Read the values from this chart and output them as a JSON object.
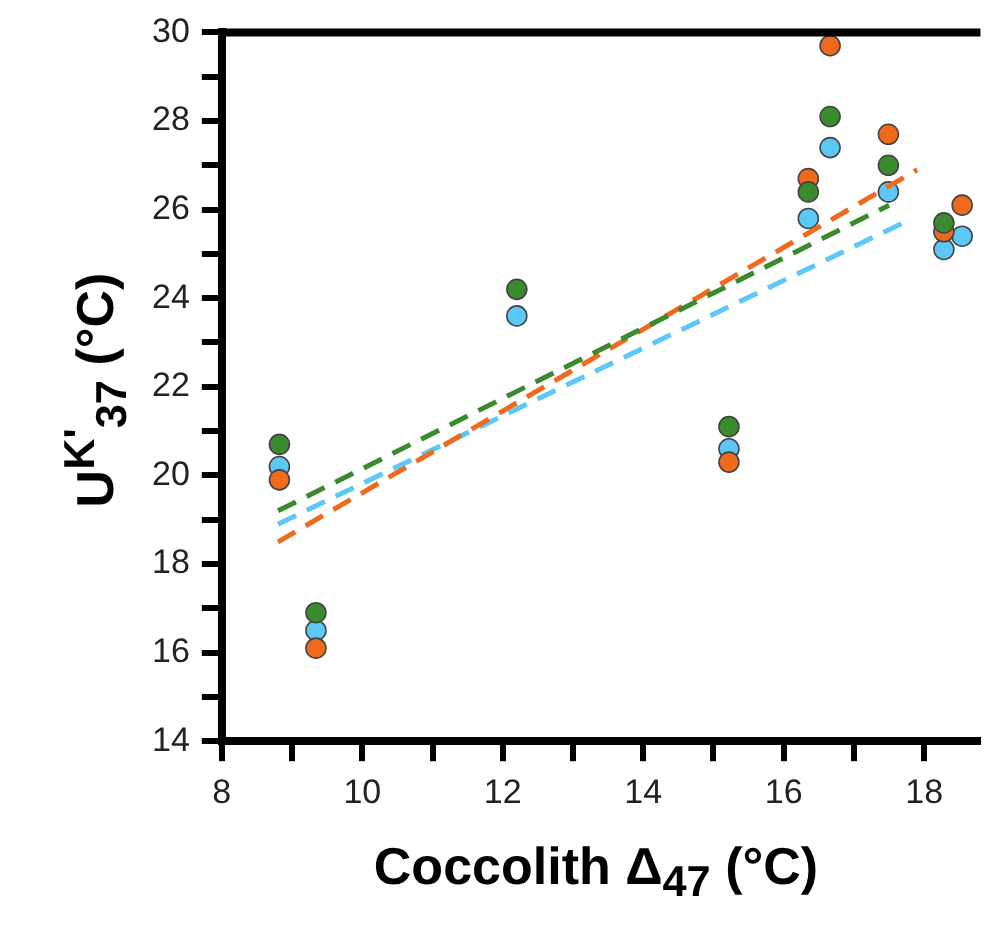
{
  "chart_data": {
    "type": "scatter",
    "xlabel": "Coccolith Δ$_{47}$  (°C)",
    "ylabel": "U$^{K'}$$_{37}$ (°C)",
    "xlim": [
      8,
      18.8
    ],
    "xticks": [
      8,
      {
        "value": 9,
        "label": null
      },
      10,
      {
        "value": 11,
        "label": null
      },
      12,
      {
        "value": 13,
        "label": null
      },
      14,
      {
        "value": 15,
        "label": null
      },
      16,
      {
        "value": 17,
        "label": null
      },
      18
    ],
    "ylim": [
      14,
      30
    ],
    "yticks": [
      14,
      {
        "value": 15,
        "label": null
      },
      16,
      {
        "value": 17,
        "label": null
      },
      18,
      {
        "value": 19,
        "label": null
      },
      20,
      {
        "value": 21,
        "label": null
      },
      22,
      {
        "value": 23,
        "label": null
      },
      24,
      {
        "value": 25,
        "label": null
      },
      26,
      {
        "value": 27,
        "label": null
      },
      28,
      {
        "value": 29,
        "label": null
      },
      30
    ],
    "grid": false,
    "legend": false,
    "marker": "circle",
    "series": [
      {
        "color": "#3a8a2e",
        "x": [
          8.82,
          9.34,
          12.2,
          15.22,
          16.35,
          16.66,
          17.49,
          18.28
        ],
        "values": [
          20.7,
          16.9,
          24.2,
          21.1,
          26.4,
          28.1,
          27.0,
          25.7
        ]
      },
      {
        "color": "#f06a1e",
        "x": [
          8.82,
          9.34,
          15.22,
          16.35,
          16.66,
          17.49,
          18.28,
          18.54
        ],
        "values": [
          19.9,
          16.1,
          20.3,
          26.7,
          29.7,
          27.7,
          25.5,
          26.1
        ]
      },
      {
        "color": "#5bc8f5",
        "x": [
          8.82,
          9.34,
          12.2,
          15.22,
          16.35,
          16.66,
          17.49,
          18.28,
          18.54
        ],
        "values": [
          20.2,
          16.5,
          23.6,
          20.6,
          25.8,
          27.4,
          26.4,
          25.1,
          25.4
        ]
      },
      {
        "type": "line",
        "color": "#3a8a2e",
        "x": [
          8.8,
          17.5
        ],
        "values": [
          19.2,
          26.1
        ],
        "marker": "none",
        "line_style": "dashed"
      },
      {
        "type": "line",
        "color": "#f06a1e",
        "x": [
          8.8,
          17.9
        ],
        "values": [
          18.5,
          26.9
        ],
        "marker": "none",
        "line_style": "dashed"
      },
      {
        "type": "line",
        "color": "#5bc8f5",
        "x": [
          8.8,
          17.7
        ],
        "values": [
          18.9,
          25.7
        ],
        "marker": "none",
        "line_style": "dashed"
      }
    ]
  }
}
